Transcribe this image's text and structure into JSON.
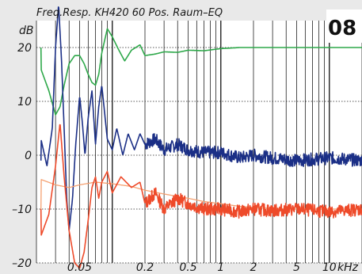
{
  "chart_data": {
    "type": "line",
    "title": "Freq.Resp. KH420  60 Pos. Raum–EQ",
    "badge": "08",
    "ylabel": "dB",
    "xunit": "kHz",
    "xscale": "log",
    "xlim": [
      0.02,
      20
    ],
    "ylim": [
      -20,
      25
    ],
    "y_ticks": [
      {
        "value": 20,
        "label": "20"
      },
      {
        "value": 10,
        "label": "10"
      },
      {
        "value": 0,
        "label": "0"
      },
      {
        "value": -10,
        "label": "–10"
      },
      {
        "value": -20,
        "label": "–20"
      }
    ],
    "x_ticks": [
      {
        "value": 0.05,
        "label": "0.05"
      },
      {
        "value": 0.2,
        "label": "0.2"
      },
      {
        "value": 0.5,
        "label": "0.5"
      },
      {
        "value": 1,
        "label": "1"
      },
      {
        "value": 2,
        "label": "2"
      },
      {
        "value": 5,
        "label": "5"
      },
      {
        "value": 10,
        "label": "10"
      }
    ],
    "grid": true,
    "colors": {
      "green": "#2ea84a",
      "blue": "#1b2f86",
      "red": "#ee4a2a",
      "orange": "#f5a070",
      "grid": "#222222",
      "bg": "#ffffff",
      "frame": "#e9e9e9"
    },
    "series": [
      {
        "color": "green",
        "x": [
          0.022,
          0.026,
          0.03,
          0.033,
          0.036,
          0.04,
          0.045,
          0.05,
          0.055,
          0.06,
          0.065,
          0.07,
          0.075,
          0.08,
          0.09,
          0.1,
          0.115,
          0.13,
          0.15,
          0.18,
          0.2,
          0.25,
          0.3,
          0.4,
          0.5,
          0.7,
          1,
          1.5,
          2,
          5,
          10,
          20
        ],
        "y": [
          16,
          12,
          7.5,
          9,
          13,
          17,
          18.5,
          18.5,
          17,
          15,
          13.5,
          13,
          15,
          19,
          23.5,
          22,
          19.5,
          17.5,
          19.5,
          20.5,
          18.5,
          18.8,
          19.2,
          19.1,
          19.5,
          19.4,
          19.8,
          20,
          20,
          20,
          20,
          20
        ]
      },
      {
        "color": "blue",
        "noise": {
          "start": 0.2,
          "amp": 1.2,
          "seed": 7
        },
        "x": [
          0.022,
          0.025,
          0.028,
          0.03,
          0.032,
          0.034,
          0.036,
          0.038,
          0.04,
          0.043,
          0.046,
          0.05,
          0.053,
          0.056,
          0.06,
          0.065,
          0.07,
          0.075,
          0.08,
          0.09,
          0.1,
          0.11,
          0.125,
          0.14,
          0.16,
          0.18,
          0.2,
          0.25,
          0.3,
          0.4,
          0.5,
          0.7,
          1,
          1.5,
          2,
          3,
          5,
          10,
          20
        ],
        "y": [
          3,
          -2,
          5,
          20,
          28,
          18,
          5,
          -8,
          -14,
          -8,
          2,
          11,
          6,
          0,
          7,
          12,
          2,
          9,
          13,
          3,
          1,
          5,
          0,
          4,
          1,
          4,
          2,
          3,
          1,
          2,
          1,
          0.5,
          0.5,
          -0.5,
          0,
          -0.5,
          -1,
          -0.5,
          -1
        ]
      },
      {
        "color": "orange",
        "x": [
          0.022,
          0.03,
          0.04,
          0.05,
          0.07,
          0.1,
          0.15,
          0.2,
          0.3,
          0.5,
          0.7,
          1,
          1.5,
          2,
          3,
          5,
          10,
          20
        ],
        "y": [
          -4.5,
          -5.5,
          -6,
          -5.5,
          -5,
          -5.3,
          -5.8,
          -6.5,
          -7.2,
          -8,
          -8.6,
          -9,
          -9.5,
          -9.7,
          -9.9,
          -10,
          -10,
          -10
        ]
      },
      {
        "color": "red",
        "noise": {
          "start": 0.2,
          "amp": 1.2,
          "seed": 13
        },
        "x": [
          0.022,
          0.026,
          0.03,
          0.033,
          0.036,
          0.04,
          0.045,
          0.05,
          0.055,
          0.06,
          0.065,
          0.07,
          0.075,
          0.08,
          0.09,
          0.1,
          0.12,
          0.15,
          0.18,
          0.2,
          0.25,
          0.3,
          0.4,
          0.5,
          0.7,
          1,
          1.5,
          2,
          3,
          5,
          10,
          20
        ],
        "y": [
          -15,
          -11,
          -2,
          6,
          -4,
          -14,
          -20,
          -21,
          -18,
          -12,
          -6,
          -4,
          -8,
          -5,
          -3,
          -7,
          -4,
          -6,
          -5,
          -9,
          -7,
          -10,
          -8,
          -9,
          -10,
          -10,
          -10.5,
          -10,
          -10.3,
          -10,
          -10.5,
          -10
        ]
      }
    ]
  }
}
